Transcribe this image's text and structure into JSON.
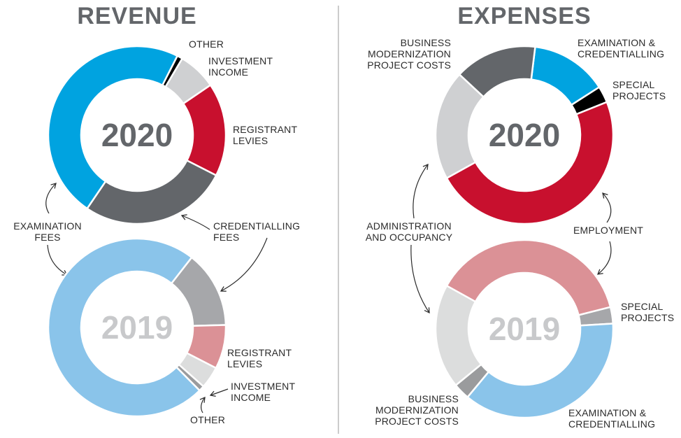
{
  "headings": [
    "REVENUE",
    "EXPENSES"
  ],
  "chart_data": [
    {
      "type": "donut",
      "center_label": "2020",
      "categories": [
        "OTHER",
        "INVESTMENT INCOME",
        "REGISTRANT LEVIES",
        "CREDENTIALLING FEES",
        "EXAMINATION FEES"
      ],
      "values": [
        1,
        7,
        17,
        27,
        48
      ],
      "colors": [
        "#000000",
        "#cfd0d2",
        "#c8102e",
        "#63666a",
        "#00a3e0"
      ]
    },
    {
      "type": "donut",
      "center_label": "2019",
      "categories": [
        null,
        "REGISTRANT LEVIES",
        "INVESTMENT INCOME",
        "OTHER",
        null
      ],
      "values": [
        14,
        8,
        4,
        1,
        73
      ],
      "colors": [
        "#a6a7aa",
        "#db9196",
        "#dcdddd",
        "#9a9b9d",
        "#8ac4ea"
      ]
    },
    {
      "type": "donut",
      "center_label": "2020",
      "categories": [
        "EXAMINATION & CREDENTIALLING",
        "SPECIAL PROJECTS",
        "EMPLOYMENT",
        "ADMINISTRATION AND OCCUPANCY",
        "BUSINESS MODERNIZATION PROJECT COSTS"
      ],
      "values": [
        14,
        3,
        48,
        20,
        15
      ],
      "colors": [
        "#00a3e0",
        "#000000",
        "#c8102e",
        "#cfd0d2",
        "#63666a"
      ]
    },
    {
      "type": "donut",
      "center_label": "2019",
      "categories": [
        null,
        "SPECIAL PROJECTS",
        "EXAMINATION & CREDENTIALLING",
        "BUSINESS MODERNIZATION PROJECT COSTS",
        null
      ],
      "values": [
        38,
        3,
        37,
        3,
        19
      ],
      "colors": [
        "#db9196",
        "#a6a7aa",
        "#8ac4ea",
        "#9a9b9d",
        "#dcdddd"
      ]
    }
  ]
}
